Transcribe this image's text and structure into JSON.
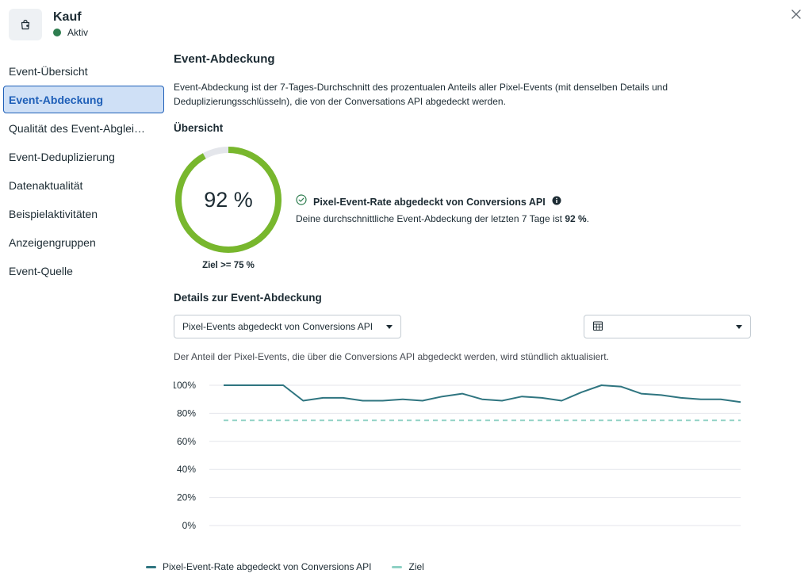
{
  "header": {
    "title": "Kauf",
    "status": "Aktiv",
    "status_color": "#2e7d4f",
    "icon": "shopping-bag-icon"
  },
  "sidebar": {
    "items": [
      {
        "label": "Event-Übersicht",
        "active": false
      },
      {
        "label": "Event-Abdeckung",
        "active": true
      },
      {
        "label": "Qualität des Event-Abglei…",
        "active": false
      },
      {
        "label": "Event-Deduplizierung",
        "active": false
      },
      {
        "label": "Datenaktualität",
        "active": false
      },
      {
        "label": "Beispielaktivitäten",
        "active": false
      },
      {
        "label": "Anzeigengruppen",
        "active": false
      },
      {
        "label": "Event-Quelle",
        "active": false
      }
    ]
  },
  "main": {
    "heading": "Event-Abdeckung",
    "description": "Event-Abdeckung ist der 7-Tages-Durchschnitt des prozentualen Anteils aller Pixel-Events (mit denselben Details und Deduplizierungsschlüsseln), die von der Conversations API abgedeckt werden.",
    "overview_heading": "Übersicht",
    "coverage": {
      "value_text": "92 %",
      "value": 92,
      "goal_text": "Ziel >= 75 %",
      "ring_color": "#78b72d",
      "ring_track_color": "#e4e6eb"
    },
    "rate": {
      "title": "Pixel-Event-Rate abgedeckt von Conversions API",
      "desc_prefix": "Deine durchschnittliche Event-Abdeckung der letzten 7 Tage ist ",
      "desc_value": "92 %",
      "desc_suffix": "."
    },
    "details_heading": "Details zur Event-Abdeckung",
    "metric_dropdown": "Pixel-Events abgedeckt von Conversions API",
    "date_dropdown": "",
    "chart_note": "Der Anteil der Pixel-Events, die über die Conversions API abgedeckt werden, wird stündlich aktualisiert."
  },
  "chart_data": {
    "type": "line",
    "y_tick_labels": [
      "100%",
      "80%",
      "60%",
      "40%",
      "20%",
      "0%"
    ],
    "ylim": [
      0,
      100
    ],
    "grid": true,
    "legend_position": "bottom",
    "series": [
      {
        "name": "Pixel-Event-Rate abgedeckt von Conversions API",
        "color": "#2f7580",
        "style": "solid",
        "values": [
          100,
          100,
          100,
          100,
          89,
          91,
          91,
          89,
          89,
          90,
          89,
          92,
          94,
          90,
          89,
          92,
          91,
          89,
          95,
          100,
          99,
          94,
          93,
          91,
          90,
          90,
          88
        ]
      },
      {
        "name": "Ziel",
        "color": "#8fd1c4",
        "style": "dashed",
        "values": [
          75,
          75
        ]
      }
    ]
  }
}
